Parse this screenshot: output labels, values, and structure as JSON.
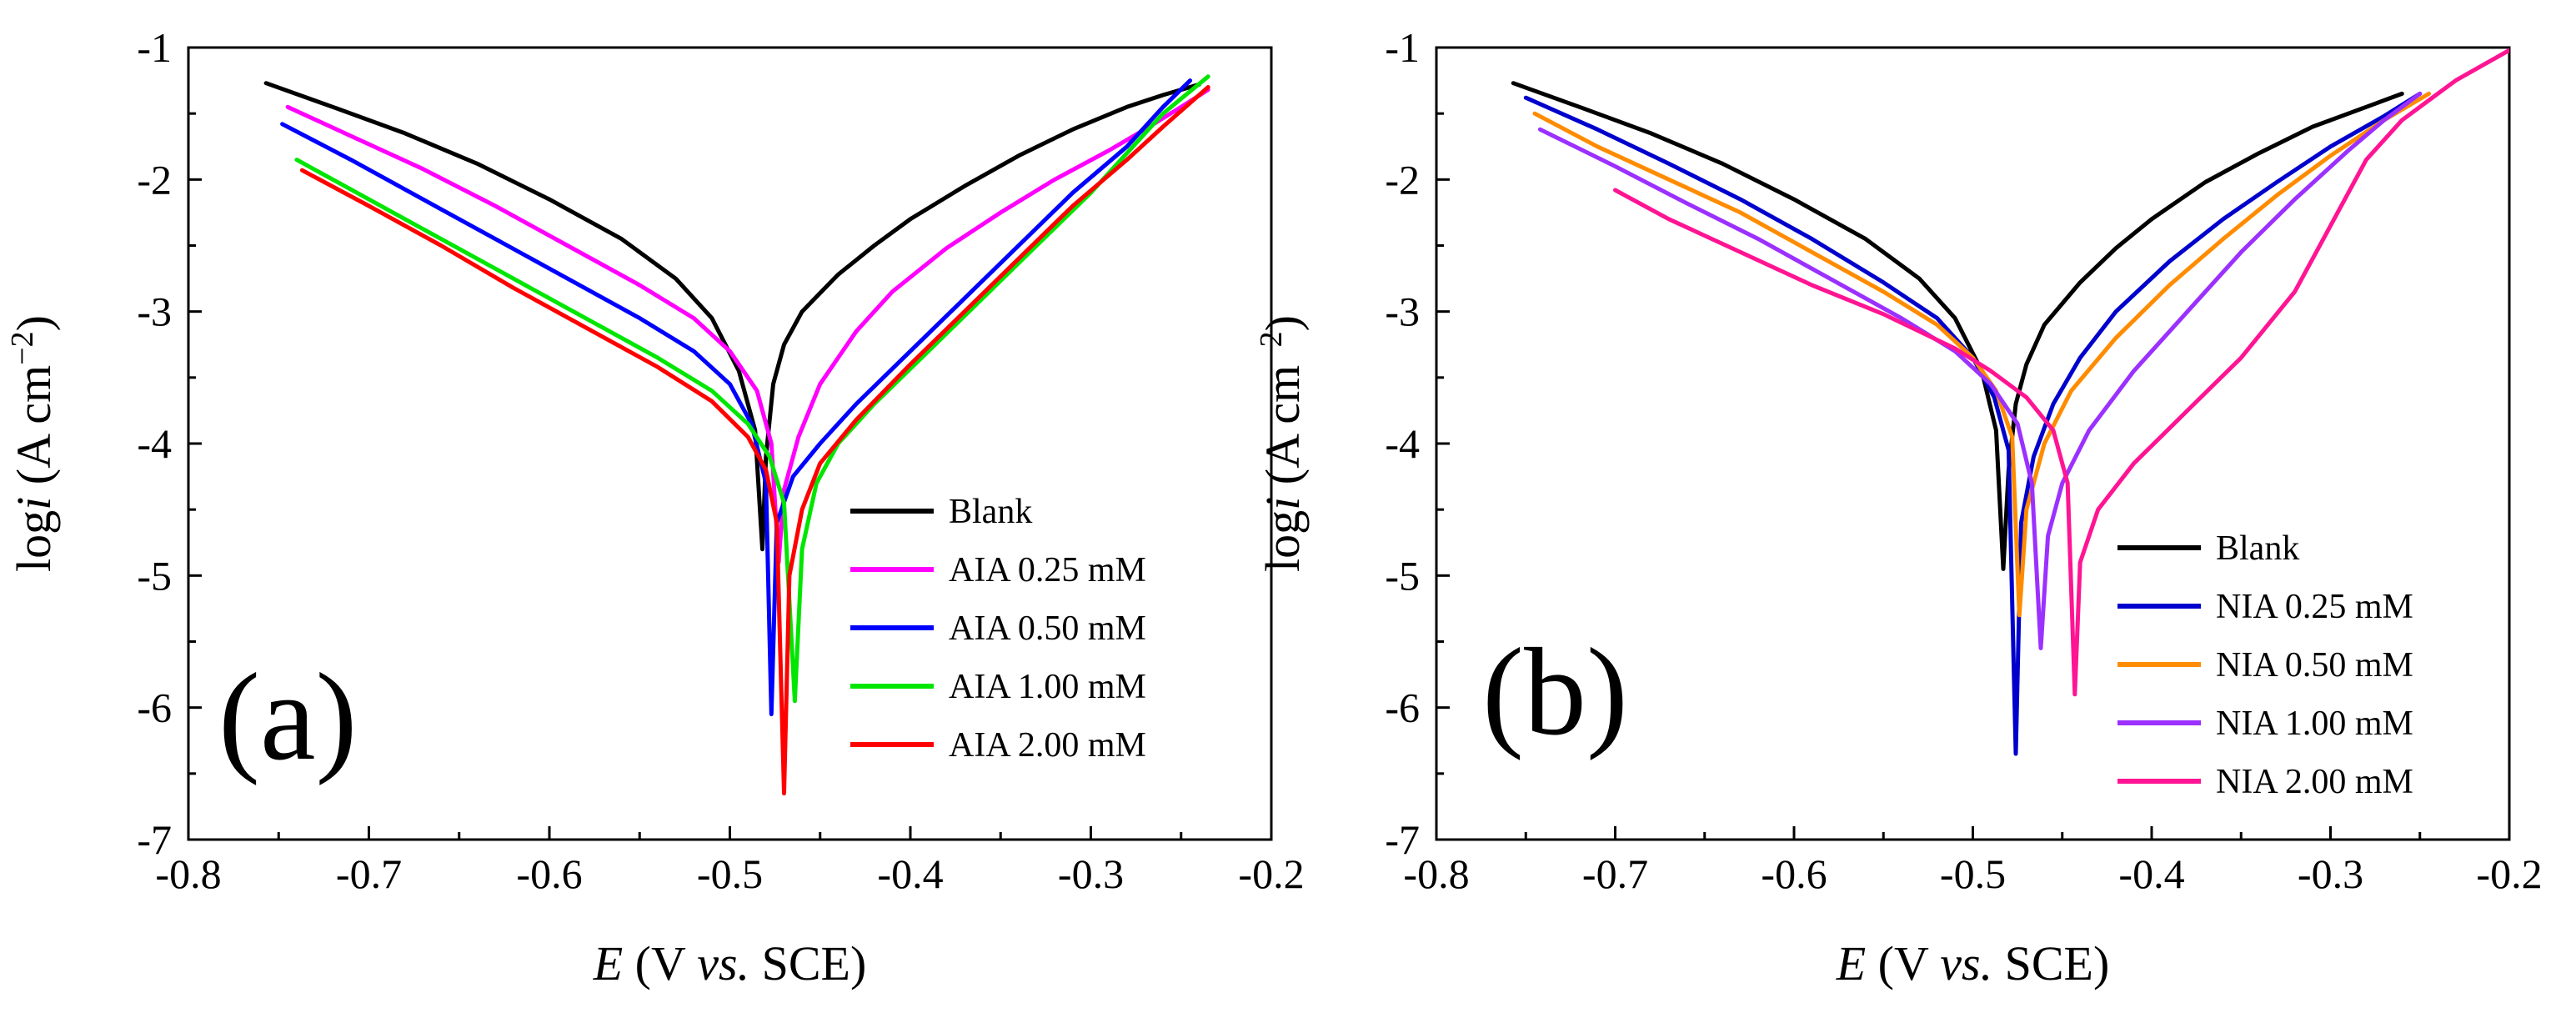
{
  "chart_data": [
    {
      "type": "line",
      "panel_label": "(a)",
      "xlabel": {
        "var": "E",
        "pre": "  (V ",
        "mid": "vs.",
        "post": " SCE)"
      },
      "ylabel": {
        "pre": "log",
        "var": "i",
        "post": " (A cm",
        "sup": "−2",
        "close": ")"
      },
      "xlim": [
        -0.8,
        -0.2
      ],
      "ylim": [
        -7,
        -1
      ],
      "xticks": [
        -0.8,
        -0.7,
        -0.6,
        -0.5,
        -0.4,
        -0.3,
        -0.2
      ],
      "yticks": [
        -7,
        -6,
        -5,
        -4,
        -3,
        -2,
        -1
      ],
      "xtick_labels": [
        "-0.8",
        "-0.7",
        "-0.6",
        "-0.5",
        "-0.4",
        "-0.3",
        "-0.2"
      ],
      "ytick_labels": [
        "-7",
        "-6",
        "-5",
        "-4",
        "-3",
        "-2",
        "-1"
      ],
      "legend_position": "bottom-right",
      "series": [
        {
          "name": "Blank",
          "color": "#000000",
          "points": [
            [
              -0.757,
              -1.27
            ],
            [
              -0.72,
              -1.45
            ],
            [
              -0.68,
              -1.65
            ],
            [
              -0.64,
              -1.88
            ],
            [
              -0.6,
              -2.15
            ],
            [
              -0.56,
              -2.45
            ],
            [
              -0.53,
              -2.75
            ],
            [
              -0.51,
              -3.05
            ],
            [
              -0.495,
              -3.45
            ],
            [
              -0.486,
              -3.9
            ],
            [
              -0.482,
              -4.8
            ],
            [
              -0.48,
              -4.1
            ],
            [
              -0.476,
              -3.55
            ],
            [
              -0.47,
              -3.25
            ],
            [
              -0.46,
              -3.0
            ],
            [
              -0.44,
              -2.72
            ],
            [
              -0.42,
              -2.5
            ],
            [
              -0.4,
              -2.3
            ],
            [
              -0.37,
              -2.05
            ],
            [
              -0.34,
              -1.82
            ],
            [
              -0.31,
              -1.62
            ],
            [
              -0.28,
              -1.45
            ],
            [
              -0.26,
              -1.36
            ],
            [
              -0.24,
              -1.28
            ]
          ]
        },
        {
          "name": "AIA 0.25 mM",
          "color": "#ff00ff",
          "points": [
            [
              -0.745,
              -1.45
            ],
            [
              -0.71,
              -1.67
            ],
            [
              -0.67,
              -1.92
            ],
            [
              -0.63,
              -2.2
            ],
            [
              -0.59,
              -2.5
            ],
            [
              -0.55,
              -2.8
            ],
            [
              -0.52,
              -3.05
            ],
            [
              -0.5,
              -3.3
            ],
            [
              -0.485,
              -3.6
            ],
            [
              -0.477,
              -4.0
            ],
            [
              -0.473,
              -4.9
            ],
            [
              -0.47,
              -4.35
            ],
            [
              -0.462,
              -3.95
            ],
            [
              -0.45,
              -3.55
            ],
            [
              -0.43,
              -3.15
            ],
            [
              -0.41,
              -2.85
            ],
            [
              -0.38,
              -2.52
            ],
            [
              -0.35,
              -2.25
            ],
            [
              -0.32,
              -2.0
            ],
            [
              -0.29,
              -1.78
            ],
            [
              -0.27,
              -1.62
            ],
            [
              -0.25,
              -1.45
            ],
            [
              -0.235,
              -1.32
            ]
          ]
        },
        {
          "name": "AIA 0.50 mM",
          "color": "#0000ff",
          "points": [
            [
              -0.748,
              -1.58
            ],
            [
              -0.71,
              -1.85
            ],
            [
              -0.67,
              -2.15
            ],
            [
              -0.63,
              -2.45
            ],
            [
              -0.59,
              -2.75
            ],
            [
              -0.55,
              -3.05
            ],
            [
              -0.52,
              -3.3
            ],
            [
              -0.5,
              -3.55
            ],
            [
              -0.488,
              -3.85
            ],
            [
              -0.48,
              -4.3
            ],
            [
              -0.477,
              -6.05
            ],
            [
              -0.474,
              -4.6
            ],
            [
              -0.465,
              -4.25
            ],
            [
              -0.45,
              -4.0
            ],
            [
              -0.43,
              -3.7
            ],
            [
              -0.4,
              -3.3
            ],
            [
              -0.37,
              -2.9
            ],
            [
              -0.34,
              -2.5
            ],
            [
              -0.31,
              -2.1
            ],
            [
              -0.28,
              -1.75
            ],
            [
              -0.26,
              -1.45
            ],
            [
              -0.245,
              -1.25
            ]
          ]
        },
        {
          "name": "AIA 1.00 mM",
          "color": "#00e600",
          "points": [
            [
              -0.74,
              -1.85
            ],
            [
              -0.7,
              -2.15
            ],
            [
              -0.66,
              -2.45
            ],
            [
              -0.62,
              -2.75
            ],
            [
              -0.58,
              -3.05
            ],
            [
              -0.54,
              -3.35
            ],
            [
              -0.51,
              -3.6
            ],
            [
              -0.49,
              -3.85
            ],
            [
              -0.478,
              -4.1
            ],
            [
              -0.47,
              -4.45
            ],
            [
              -0.464,
              -5.95
            ],
            [
              -0.46,
              -4.8
            ],
            [
              -0.452,
              -4.3
            ],
            [
              -0.44,
              -4.0
            ],
            [
              -0.42,
              -3.7
            ],
            [
              -0.39,
              -3.3
            ],
            [
              -0.36,
              -2.9
            ],
            [
              -0.33,
              -2.5
            ],
            [
              -0.3,
              -2.1
            ],
            [
              -0.28,
              -1.8
            ],
            [
              -0.26,
              -1.5
            ],
            [
              -0.235,
              -1.22
            ]
          ]
        },
        {
          "name": "AIA 2.00 mM",
          "color": "#ff0000",
          "points": [
            [
              -0.737,
              -1.93
            ],
            [
              -0.7,
              -2.2
            ],
            [
              -0.66,
              -2.5
            ],
            [
              -0.62,
              -2.82
            ],
            [
              -0.58,
              -3.12
            ],
            [
              -0.54,
              -3.42
            ],
            [
              -0.51,
              -3.68
            ],
            [
              -0.49,
              -3.95
            ],
            [
              -0.48,
              -4.2
            ],
            [
              -0.474,
              -4.6
            ],
            [
              -0.47,
              -6.65
            ],
            [
              -0.467,
              -5.0
            ],
            [
              -0.46,
              -4.5
            ],
            [
              -0.45,
              -4.15
            ],
            [
              -0.43,
              -3.82
            ],
            [
              -0.4,
              -3.4
            ],
            [
              -0.37,
              -3.0
            ],
            [
              -0.34,
              -2.6
            ],
            [
              -0.31,
              -2.2
            ],
            [
              -0.28,
              -1.85
            ],
            [
              -0.26,
              -1.6
            ],
            [
              -0.235,
              -1.3
            ]
          ]
        }
      ]
    },
    {
      "type": "line",
      "panel_label": "(b)",
      "xlabel": {
        "var": "E",
        "pre": "  (V ",
        "mid": "vs.",
        "post": " SCE)"
      },
      "ylabel": {
        "pre": "log",
        "var": "i",
        "post": " (A cm",
        "sup": "−2",
        "close": ")"
      },
      "xlim": [
        -0.8,
        -0.2
      ],
      "ylim": [
        -7,
        -1
      ],
      "xticks": [
        -0.8,
        -0.7,
        -0.6,
        -0.5,
        -0.4,
        -0.3,
        -0.2
      ],
      "yticks": [
        -7,
        -6,
        -5,
        -4,
        -3,
        -2,
        -1
      ],
      "xtick_labels": [
        "-0.8",
        "-0.7",
        "-0.6",
        "-0.5",
        "-0.4",
        "-0.3",
        "-0.2"
      ],
      "ytick_labels": [
        "-7",
        "-6",
        "-5",
        "-4",
        "-3",
        "-2",
        "-1"
      ],
      "legend_position": "bottom-right",
      "series": [
        {
          "name": "Blank",
          "color": "#000000",
          "points": [
            [
              -0.757,
              -1.27
            ],
            [
              -0.72,
              -1.45
            ],
            [
              -0.68,
              -1.65
            ],
            [
              -0.64,
              -1.88
            ],
            [
              -0.6,
              -2.15
            ],
            [
              -0.56,
              -2.45
            ],
            [
              -0.53,
              -2.75
            ],
            [
              -0.51,
              -3.05
            ],
            [
              -0.495,
              -3.45
            ],
            [
              -0.487,
              -3.9
            ],
            [
              -0.483,
              -4.95
            ],
            [
              -0.48,
              -4.2
            ],
            [
              -0.476,
              -3.7
            ],
            [
              -0.47,
              -3.4
            ],
            [
              -0.46,
              -3.1
            ],
            [
              -0.44,
              -2.78
            ],
            [
              -0.42,
              -2.52
            ],
            [
              -0.4,
              -2.3
            ],
            [
              -0.37,
              -2.02
            ],
            [
              -0.34,
              -1.8
            ],
            [
              -0.31,
              -1.6
            ],
            [
              -0.28,
              -1.45
            ],
            [
              -0.26,
              -1.35
            ]
          ]
        },
        {
          "name": "NIA 0.25 mM",
          "color": "#0000cc",
          "points": [
            [
              -0.75,
              -1.38
            ],
            [
              -0.71,
              -1.62
            ],
            [
              -0.67,
              -1.88
            ],
            [
              -0.63,
              -2.15
            ],
            [
              -0.59,
              -2.45
            ],
            [
              -0.55,
              -2.78
            ],
            [
              -0.52,
              -3.05
            ],
            [
              -0.5,
              -3.35
            ],
            [
              -0.488,
              -3.65
            ],
            [
              -0.48,
              -4.05
            ],
            [
              -0.476,
              -6.35
            ],
            [
              -0.473,
              -4.6
            ],
            [
              -0.466,
              -4.1
            ],
            [
              -0.455,
              -3.7
            ],
            [
              -0.44,
              -3.35
            ],
            [
              -0.42,
              -3.0
            ],
            [
              -0.39,
              -2.62
            ],
            [
              -0.36,
              -2.3
            ],
            [
              -0.33,
              -2.02
            ],
            [
              -0.3,
              -1.75
            ],
            [
              -0.27,
              -1.52
            ],
            [
              -0.25,
              -1.35
            ]
          ]
        },
        {
          "name": "NIA 0.50 mM",
          "color": "#ff8c00",
          "points": [
            [
              -0.745,
              -1.5
            ],
            [
              -0.71,
              -1.75
            ],
            [
              -0.67,
              -2.0
            ],
            [
              -0.63,
              -2.25
            ],
            [
              -0.59,
              -2.55
            ],
            [
              -0.55,
              -2.85
            ],
            [
              -0.52,
              -3.1
            ],
            [
              -0.5,
              -3.35
            ],
            [
              -0.487,
              -3.6
            ],
            [
              -0.478,
              -3.95
            ],
            [
              -0.474,
              -5.3
            ],
            [
              -0.47,
              -4.5
            ],
            [
              -0.46,
              -4.0
            ],
            [
              -0.445,
              -3.6
            ],
            [
              -0.42,
              -3.2
            ],
            [
              -0.39,
              -2.8
            ],
            [
              -0.36,
              -2.45
            ],
            [
              -0.33,
              -2.12
            ],
            [
              -0.3,
              -1.82
            ],
            [
              -0.27,
              -1.55
            ],
            [
              -0.245,
              -1.35
            ]
          ]
        },
        {
          "name": "NIA 1.00 mM",
          "color": "#9b30ff",
          "points": [
            [
              -0.742,
              -1.62
            ],
            [
              -0.7,
              -1.9
            ],
            [
              -0.66,
              -2.18
            ],
            [
              -0.62,
              -2.45
            ],
            [
              -0.58,
              -2.75
            ],
            [
              -0.54,
              -3.05
            ],
            [
              -0.51,
              -3.3
            ],
            [
              -0.49,
              -3.55
            ],
            [
              -0.475,
              -3.85
            ],
            [
              -0.467,
              -4.3
            ],
            [
              -0.462,
              -5.55
            ],
            [
              -0.458,
              -4.7
            ],
            [
              -0.45,
              -4.3
            ],
            [
              -0.435,
              -3.9
            ],
            [
              -0.41,
              -3.45
            ],
            [
              -0.38,
              -3.0
            ],
            [
              -0.35,
              -2.55
            ],
            [
              -0.32,
              -2.15
            ],
            [
              -0.29,
              -1.78
            ],
            [
              -0.27,
              -1.55
            ],
            [
              -0.25,
              -1.35
            ]
          ]
        },
        {
          "name": "NIA 2.00 mM",
          "color": "#ff1493",
          "points": [
            [
              -0.7,
              -2.08
            ],
            [
              -0.67,
              -2.3
            ],
            [
              -0.63,
              -2.55
            ],
            [
              -0.59,
              -2.8
            ],
            [
              -0.55,
              -3.02
            ],
            [
              -0.51,
              -3.28
            ],
            [
              -0.49,
              -3.45
            ],
            [
              -0.47,
              -3.65
            ],
            [
              -0.455,
              -3.9
            ],
            [
              -0.447,
              -4.3
            ],
            [
              -0.443,
              -5.9
            ],
            [
              -0.44,
              -4.9
            ],
            [
              -0.43,
              -4.5
            ],
            [
              -0.41,
              -4.15
            ],
            [
              -0.38,
              -3.75
            ],
            [
              -0.35,
              -3.35
            ],
            [
              -0.32,
              -2.85
            ],
            [
              -0.3,
              -2.35
            ],
            [
              -0.28,
              -1.85
            ],
            [
              -0.26,
              -1.55
            ],
            [
              -0.23,
              -1.25
            ],
            [
              -0.2,
              -1.02
            ]
          ]
        }
      ]
    }
  ]
}
